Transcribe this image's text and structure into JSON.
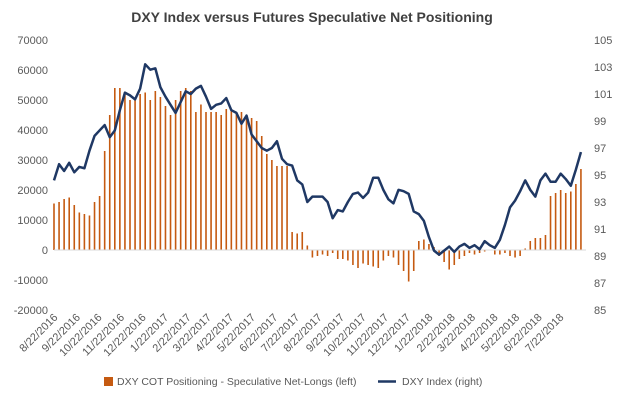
{
  "chart_data": {
    "type": "bar",
    "title": "DXY Index versus Futures Speculative Net Positioning",
    "x_tick_labels": [
      "8/22/2016",
      "9/22/2016",
      "10/22/2016",
      "11/22/2016",
      "12/22/2016",
      "1/22/2017",
      "2/22/2017",
      "3/22/2017",
      "4/22/2017",
      "5/22/2017",
      "6/22/2017",
      "7/22/2017",
      "8/22/2017",
      "9/22/2017",
      "10/22/2017",
      "11/22/2017",
      "12/22/2017",
      "1/22/2018",
      "2/22/2018",
      "3/22/2018",
      "4/22/2018",
      "5/22/2018",
      "6/22/2018",
      "7/22/2018"
    ],
    "y_left": {
      "min": -20000,
      "max": 70000,
      "ticks": [
        "-20000",
        "-10000",
        "0",
        "10000",
        "20000",
        "30000",
        "40000",
        "50000",
        "60000",
        "70000"
      ]
    },
    "y_right": {
      "min": 85,
      "max": 105,
      "ticks": [
        "85",
        "87",
        "89",
        "91",
        "93",
        "95",
        "97",
        "99",
        "101",
        "103",
        "105"
      ]
    },
    "x_range": {
      "start": "2016-08-16",
      "end": "2018-08-21"
    },
    "grid": false,
    "legend_position": "bottom",
    "series": [
      {
        "name": "DXY COT Positioning - Speculative Net-Longs (left)",
        "type": "bar",
        "axis": "left",
        "color": "#C55A11",
        "x": [
          "2016-08-16",
          "2016-08-23",
          "2016-08-30",
          "2016-09-06",
          "2016-09-13",
          "2016-09-20",
          "2016-09-27",
          "2016-10-04",
          "2016-10-11",
          "2016-10-18",
          "2016-10-25",
          "2016-11-01",
          "2016-11-08",
          "2016-11-15",
          "2016-11-22",
          "2016-11-29",
          "2016-12-06",
          "2016-12-13",
          "2016-12-20",
          "2016-12-27",
          "2017-01-03",
          "2017-01-10",
          "2017-01-17",
          "2017-01-24",
          "2017-01-31",
          "2017-02-07",
          "2017-02-14",
          "2017-02-21",
          "2017-02-28",
          "2017-03-07",
          "2017-03-14",
          "2017-03-21",
          "2017-03-28",
          "2017-04-04",
          "2017-04-11",
          "2017-04-18",
          "2017-04-25",
          "2017-05-02",
          "2017-05-09",
          "2017-05-16",
          "2017-05-23",
          "2017-05-30",
          "2017-06-06",
          "2017-06-13",
          "2017-06-20",
          "2017-06-27",
          "2017-07-04",
          "2017-07-11",
          "2017-07-18",
          "2017-07-25",
          "2017-08-01",
          "2017-08-08",
          "2017-08-15",
          "2017-08-22",
          "2017-08-29",
          "2017-09-05",
          "2017-09-12",
          "2017-09-19",
          "2017-09-26",
          "2017-10-03",
          "2017-10-10",
          "2017-10-17",
          "2017-10-24",
          "2017-10-31",
          "2017-11-07",
          "2017-11-14",
          "2017-11-21",
          "2017-11-28",
          "2017-12-05",
          "2017-12-12",
          "2017-12-19",
          "2017-12-26",
          "2018-01-02",
          "2018-01-09",
          "2018-01-16",
          "2018-01-23",
          "2018-01-30",
          "2018-02-06",
          "2018-02-13",
          "2018-02-20",
          "2018-02-27",
          "2018-03-06",
          "2018-03-13",
          "2018-03-20",
          "2018-03-27",
          "2018-04-03",
          "2018-04-10",
          "2018-04-17",
          "2018-04-24",
          "2018-05-01",
          "2018-05-08",
          "2018-05-15",
          "2018-05-22",
          "2018-05-29",
          "2018-06-05",
          "2018-06-12",
          "2018-06-19",
          "2018-06-26",
          "2018-07-03",
          "2018-07-10",
          "2018-07-17",
          "2018-07-24",
          "2018-07-31",
          "2018-08-07",
          "2018-08-14"
        ],
        "values": [
          15500,
          16000,
          17000,
          17500,
          15000,
          12500,
          12000,
          11500,
          16000,
          18000,
          33000,
          45000,
          54000,
          54000,
          52000,
          50000,
          50000,
          52000,
          52500,
          50000,
          53000,
          51000,
          48000,
          45000,
          50000,
          53000,
          54000,
          53000,
          46000,
          48500,
          46000,
          46000,
          46000,
          45000,
          47000,
          47000,
          45500,
          46000,
          44500,
          44000,
          43000,
          38000,
          32000,
          30000,
          28000,
          28000,
          28000,
          6000,
          5500,
          6000,
          1500,
          -2500,
          -2000,
          -1500,
          -2000,
          -1000,
          -3000,
          -3000,
          -3500,
          -5000,
          -6000,
          -4500,
          -5000,
          -5500,
          -6000,
          -3500,
          -2000,
          -2500,
          -5000,
          -7000,
          -10500,
          -7000,
          3000,
          3500,
          2000,
          1000,
          -2000,
          -4000,
          -6500,
          -5000,
          -3000,
          -2000,
          -1000,
          -1500,
          -1000,
          -500,
          0,
          -1500,
          -1500,
          -1000,
          -2000,
          -2500,
          -2000,
          500,
          3000,
          4000,
          4000,
          5000,
          18000,
          19000,
          20000,
          19000,
          19500,
          22000,
          27000
        ]
      },
      {
        "name": "DXY Index (right)",
        "type": "line",
        "axis": "right",
        "color": "#1F3864",
        "x": [
          "2016-08-16",
          "2016-08-23",
          "2016-08-30",
          "2016-09-06",
          "2016-09-13",
          "2016-09-20",
          "2016-09-27",
          "2016-10-04",
          "2016-10-11",
          "2016-10-18",
          "2016-10-25",
          "2016-11-01",
          "2016-11-08",
          "2016-11-15",
          "2016-11-22",
          "2016-11-29",
          "2016-12-06",
          "2016-12-13",
          "2016-12-20",
          "2016-12-27",
          "2017-01-03",
          "2017-01-10",
          "2017-01-17",
          "2017-01-24",
          "2017-01-31",
          "2017-02-07",
          "2017-02-14",
          "2017-02-21",
          "2017-02-28",
          "2017-03-07",
          "2017-03-14",
          "2017-03-21",
          "2017-03-28",
          "2017-04-04",
          "2017-04-11",
          "2017-04-18",
          "2017-04-25",
          "2017-05-02",
          "2017-05-09",
          "2017-05-16",
          "2017-05-23",
          "2017-05-30",
          "2017-06-06",
          "2017-06-13",
          "2017-06-20",
          "2017-06-27",
          "2017-07-04",
          "2017-07-11",
          "2017-07-18",
          "2017-07-25",
          "2017-08-01",
          "2017-08-08",
          "2017-08-15",
          "2017-08-22",
          "2017-08-29",
          "2017-09-05",
          "2017-09-12",
          "2017-09-19",
          "2017-09-26",
          "2017-10-03",
          "2017-10-10",
          "2017-10-17",
          "2017-10-24",
          "2017-10-31",
          "2017-11-07",
          "2017-11-14",
          "2017-11-21",
          "2017-11-28",
          "2017-12-05",
          "2017-12-12",
          "2017-12-19",
          "2017-12-26",
          "2018-01-02",
          "2018-01-09",
          "2018-01-16",
          "2018-01-23",
          "2018-01-30",
          "2018-02-06",
          "2018-02-13",
          "2018-02-20",
          "2018-02-27",
          "2018-03-06",
          "2018-03-13",
          "2018-03-20",
          "2018-03-27",
          "2018-04-03",
          "2018-04-10",
          "2018-04-17",
          "2018-04-24",
          "2018-05-01",
          "2018-05-08",
          "2018-05-15",
          "2018-05-22",
          "2018-05-29",
          "2018-06-05",
          "2018-06-12",
          "2018-06-19",
          "2018-06-26",
          "2018-07-03",
          "2018-07-10",
          "2018-07-17",
          "2018-07-24",
          "2018-07-31",
          "2018-08-07",
          "2018-08-14"
        ],
        "values": [
          94.6,
          95.8,
          95.3,
          95.9,
          95.2,
          95.6,
          95.5,
          96.8,
          97.9,
          98.3,
          98.7,
          97.8,
          98.3,
          99.8,
          101.1,
          100.9,
          100.6,
          101.4,
          103.2,
          102.8,
          102.9,
          101.5,
          100.8,
          100.2,
          99.6,
          100.4,
          101.2,
          101.0,
          101.4,
          101.6,
          100.8,
          99.9,
          100.2,
          100.3,
          100.7,
          99.8,
          99.6,
          98.8,
          99.4,
          98.0,
          97.5,
          97.0,
          96.8,
          97.0,
          97.5,
          96.2,
          95.8,
          95.7,
          94.6,
          94.3,
          93.0,
          93.4,
          93.4,
          93.4,
          93.0,
          91.8,
          92.4,
          92.3,
          93.0,
          93.6,
          93.7,
          93.3,
          93.7,
          94.8,
          94.8,
          93.9,
          93.2,
          92.9,
          93.9,
          93.8,
          93.6,
          92.3,
          92.1,
          91.6,
          90.4,
          89.4,
          89.1,
          89.4,
          89.7,
          89.3,
          89.7,
          89.9,
          89.6,
          89.8,
          89.5,
          90.1,
          89.8,
          89.6,
          90.2,
          91.3,
          92.6,
          93.1,
          93.8,
          94.6,
          93.9,
          93.4,
          94.6,
          95.1,
          94.5,
          94.5,
          95.1,
          94.7,
          94.2,
          95.4,
          96.7
        ]
      }
    ]
  },
  "legend": {
    "bar_label": "DXY COT Positioning - Speculative Net-Longs (left)",
    "line_label": "DXY Index (right)"
  }
}
